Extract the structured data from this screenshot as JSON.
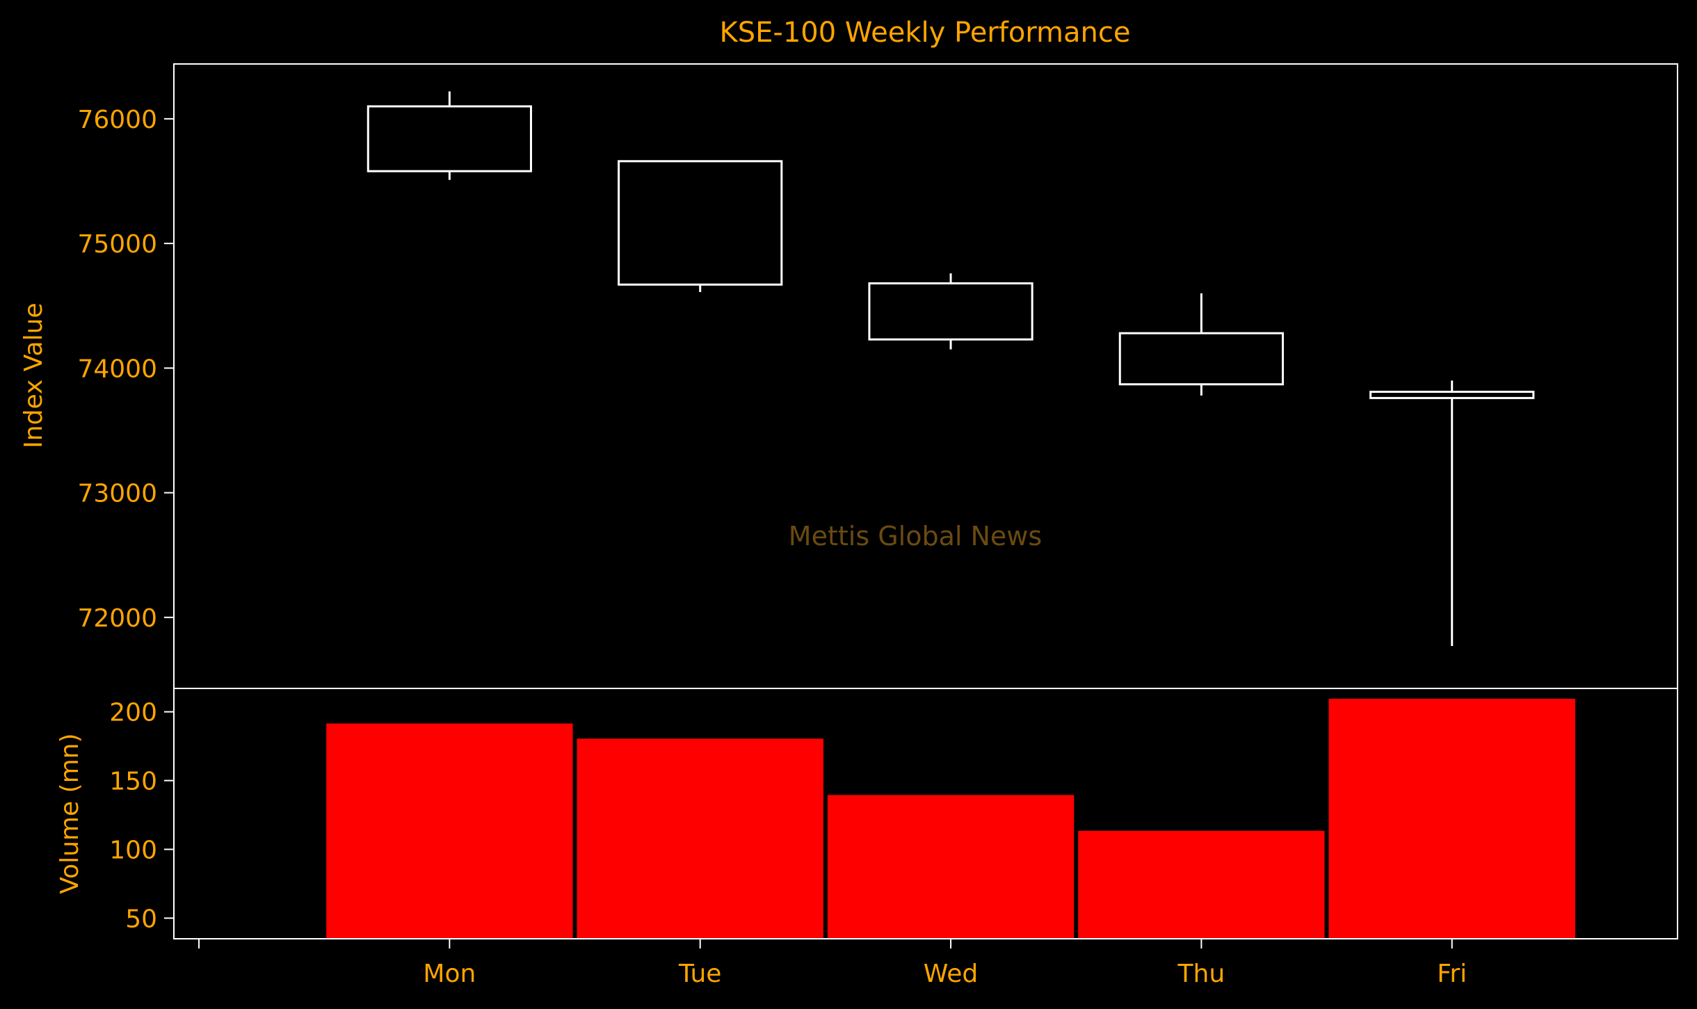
{
  "chart_data": {
    "type": "candlestick",
    "title": "KSE-100 Weekly Performance",
    "watermark": "Mettis Global News",
    "categories": [
      "Mon",
      "Tue",
      "Wed",
      "Thu",
      "Fri"
    ],
    "price_panel": {
      "ylabel": "Index Value",
      "ylim": [
        71430,
        76440
      ],
      "yticks": [
        72000,
        73000,
        74000,
        75000,
        76000
      ],
      "series": [
        {
          "day": "Mon",
          "open": 75580,
          "close": 76100,
          "high": 76220,
          "low": 75510
        },
        {
          "day": "Tue",
          "open": 75660,
          "close": 74670,
          "high": 75660,
          "low": 74610
        },
        {
          "day": "Wed",
          "open": 74230,
          "close": 74680,
          "high": 74760,
          "low": 74150
        },
        {
          "day": "Thu",
          "open": 73870,
          "close": 74280,
          "high": 74600,
          "low": 73780
        },
        {
          "day": "Fri",
          "open": 73760,
          "close": 73810,
          "high": 73900,
          "low": 71770
        }
      ]
    },
    "volume_panel": {
      "ylabel": "Volume (mn)",
      "ylim": [
        35,
        217
      ],
      "yticks": [
        50,
        100,
        150,
        200
      ],
      "values": [
        192,
        181,
        140,
        114,
        210
      ]
    },
    "colors": {
      "background": "#000000",
      "text": "#FFA500",
      "candle": "#FFFFFF",
      "volume_bar": "#FF0000",
      "watermark": "#6B4A12"
    },
    "grid": false
  }
}
